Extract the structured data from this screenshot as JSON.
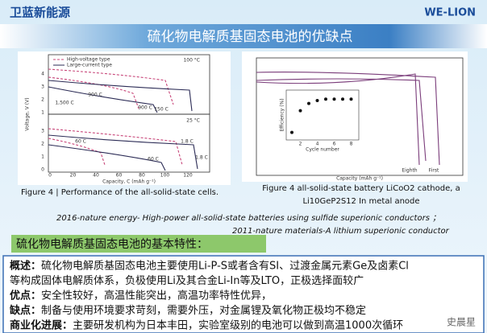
{
  "header": {
    "logo": "卫蓝新能源",
    "brand": "WE-LION",
    "title": "硫化物电解质基固态电池的优缺点"
  },
  "figure_left": {
    "legend": [
      "High-voltage type",
      "Large-current type"
    ],
    "temps": [
      "100 °C",
      "25 °C"
    ],
    "y_label": "Voltage, V (V)",
    "yticks_top": [
      "4",
      "3",
      "2",
      "1"
    ],
    "yticks_bottom": [
      "3",
      "2",
      "1",
      "0"
    ],
    "xticks": [
      "0",
      "20",
      "40",
      "60",
      "80",
      "100",
      "120"
    ],
    "x_label": "Capacity, C (mAh g⁻¹)",
    "curve_labels": [
      "900 C",
      "150 C",
      "1,500 C",
      "900 C",
      "60 C",
      "1.8 C",
      "60 C",
      "1.8 C"
    ],
    "caption": "Figure 4 | Performance of the all-solid-state cells."
  },
  "figure_right": {
    "inset_y_label": "Efficiency (%)",
    "inset_x_label": "Cycle number",
    "inset_xticks": [
      "2",
      "4",
      "6",
      "8"
    ],
    "inset_values": [
      73,
      88,
      93,
      95,
      96,
      96,
      96,
      96
    ],
    "cycle_labels": [
      "Eighth",
      "First"
    ],
    "x_label": "Capacity (mAh g⁻¹)",
    "caption": [
      "Figure 4 all-solid-state battery LiCoO2 cathode, a",
      "Li10GeP2S12 In metal anode"
    ]
  },
  "references": [
    "2016-nature energy- High-power all-solid-state batteries using sulfide superionic conductors ；",
    "2011-nature materials-A lithium superionic conductor"
  ],
  "section_title": "硫化物电解质基固态电池的基本特性：",
  "items": [
    {
      "label": "概述：",
      "text": [
        "硫化物电解质基固态电池主要使用Li-P-S或者含有SI、过渡金属元素Ge及卤素Cl",
        "等构成固体电解质体系，负极使用Li及其合金Li-In等及LTO，正极选择面较广"
      ]
    },
    {
      "label": "优点：",
      "text": [
        "安全性较好，高温性能突出，高温功率特性优异，"
      ]
    },
    {
      "label": "缺点：",
      "text": [
        "制备与使用环境要求苛刻，需要外压，对金属锂及氧化物正极均不稳定"
      ]
    },
    {
      "label": "商业化进展：",
      "text": [
        "主要研发机构为日本丰田，实验室级别的电池可以做到高温1000次循环"
      ]
    }
  ],
  "watermark": "史晨星"
}
